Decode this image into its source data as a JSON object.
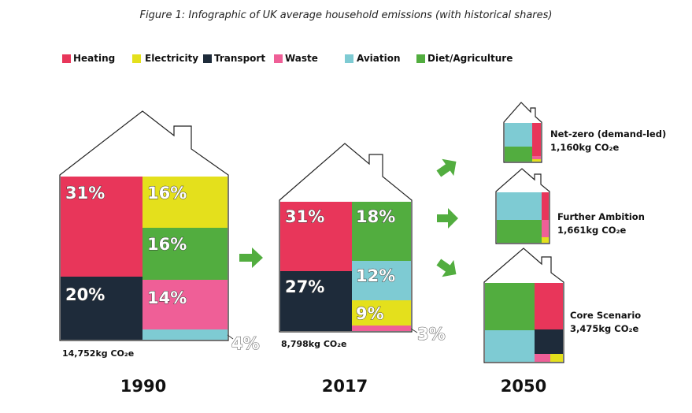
{
  "caption": "Figure 1: Infographic of UK average household emissions (with historical shares)",
  "colors": {
    "Heating": "#e8365a",
    "Electricity": "#e4e01c",
    "Transport": "#1e2b3a",
    "Waste": "#ef5f97",
    "Aviation": "#7ecbd3",
    "Diet/Agriculture": "#52ad3f"
  },
  "legend": [
    "Heating",
    "Electricity",
    "Transport",
    "Waste",
    "Aviation",
    "Diet/Agriculture"
  ],
  "chart_data": {
    "type": "treemap",
    "categories": [
      "Heating",
      "Electricity",
      "Transport",
      "Waste",
      "Aviation",
      "Diet/Agriculture"
    ],
    "houses": [
      {
        "year": "1990",
        "total_label": "14,752kg CO₂e",
        "shares": [
          {
            "category": "Heating",
            "label": "31%"
          },
          {
            "category": "Transport",
            "label": "20%"
          },
          {
            "category": "Electricity",
            "label": "16%"
          },
          {
            "category": "Diet/Agriculture",
            "label": "16%"
          },
          {
            "category": "Waste",
            "label": "14%"
          },
          {
            "category": "Aviation",
            "label": "4%"
          }
        ]
      },
      {
        "year": "2017",
        "total_label": "8,798kg CO₂e",
        "shares": [
          {
            "category": "Heating",
            "label": "31%"
          },
          {
            "category": "Transport",
            "label": "27%"
          },
          {
            "category": "Diet/Agriculture",
            "label": "18%"
          },
          {
            "category": "Aviation",
            "label": "12%"
          },
          {
            "category": "Electricity",
            "label": "9%"
          },
          {
            "category": "Waste",
            "label": "3%"
          }
        ]
      }
    ],
    "year_2050": "2050",
    "scenarios_2050": [
      {
        "name": "Net-zero (demand-led)",
        "total_label": "1,160kg CO₂e"
      },
      {
        "name": "Further Ambition",
        "total_label": "1,661kg CO₂e"
      },
      {
        "name": "Core Scenario",
        "total_label": "3,475kg CO₂e"
      }
    ]
  }
}
